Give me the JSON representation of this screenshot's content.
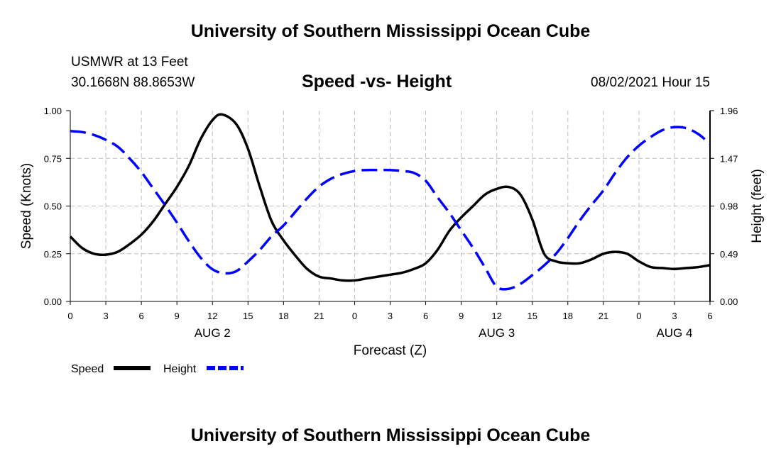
{
  "header": {
    "title": "University of Southern Mississippi Ocean Cube",
    "station": "USMWR at 13 Feet",
    "coordinates": "30.1668N  88.8653W",
    "timestamp": "08/02/2021 Hour 15"
  },
  "footer": {
    "title": "University of Southern Mississippi Ocean Cube"
  },
  "chart_data": {
    "type": "line",
    "title": "Speed -vs- Height",
    "xlabel": "Forecast (Z)",
    "ylabel": "Speed (Knots)",
    "y2label": "Height (feet)",
    "xlim": [
      0,
      54
    ],
    "ylim": [
      0,
      1.0
    ],
    "y2lim": [
      0,
      1.96
    ],
    "grid": true,
    "x_tick_values": [
      0,
      3,
      6,
      9,
      12,
      15,
      18,
      21,
      24,
      27,
      30,
      33,
      36,
      39,
      42,
      45,
      48,
      51,
      54
    ],
    "x_tick_labels": [
      "0",
      "3",
      "6",
      "9",
      "12",
      "15",
      "18",
      "21",
      "0",
      "3",
      "6",
      "9",
      "12",
      "15",
      "18",
      "21",
      "0",
      "3",
      "6"
    ],
    "y_tick_values": [
      0,
      0.25,
      0.5,
      0.75,
      1.0
    ],
    "y_tick_labels": [
      "0.00",
      "0.25",
      "0.50",
      "0.75",
      "1.00"
    ],
    "y2_tick_values": [
      0,
      0.49,
      0.98,
      1.47,
      1.96
    ],
    "y2_tick_labels": [
      "0.00",
      "0.49",
      "0.98",
      "1.47",
      "1.96"
    ],
    "date_labels": [
      {
        "label": "AUG 2",
        "x": 12
      },
      {
        "label": "AUG 3",
        "x": 36
      },
      {
        "label": "AUG 4",
        "x": 51
      }
    ],
    "legend": {
      "placement": "bottom-left"
    },
    "series": [
      {
        "name": "Speed",
        "axis": "left",
        "color": "#000000",
        "style": "solid",
        "x": [
          0,
          1,
          2,
          3,
          4,
          5,
          6,
          7,
          8,
          9,
          10,
          11,
          12,
          12.8,
          14,
          15,
          16,
          17,
          18,
          19,
          20,
          21,
          22,
          23,
          24,
          25,
          26,
          27,
          28,
          29,
          30,
          31,
          32,
          33,
          34,
          35,
          36,
          37,
          38,
          39,
          40,
          41,
          42,
          43,
          44,
          45,
          46,
          47,
          48,
          49,
          50,
          51,
          52,
          53,
          54
        ],
        "values": [
          0.34,
          0.28,
          0.25,
          0.245,
          0.26,
          0.3,
          0.35,
          0.42,
          0.51,
          0.6,
          0.71,
          0.85,
          0.95,
          0.98,
          0.93,
          0.8,
          0.6,
          0.42,
          0.32,
          0.24,
          0.17,
          0.13,
          0.12,
          0.11,
          0.11,
          0.12,
          0.13,
          0.14,
          0.15,
          0.17,
          0.2,
          0.27,
          0.37,
          0.44,
          0.5,
          0.56,
          0.59,
          0.6,
          0.56,
          0.43,
          0.25,
          0.21,
          0.2,
          0.2,
          0.22,
          0.25,
          0.26,
          0.25,
          0.21,
          0.18,
          0.175,
          0.17,
          0.175,
          0.18,
          0.19
        ]
      },
      {
        "name": "Height",
        "axis": "right",
        "color": "#0000ff",
        "style": "dashed",
        "x": [
          0,
          1,
          2,
          3,
          4,
          5,
          6,
          7,
          8,
          9,
          10,
          11,
          12,
          13,
          14,
          15,
          16,
          17,
          18,
          19,
          20,
          21,
          22,
          23,
          24,
          25,
          26,
          27,
          28,
          29,
          30,
          31,
          32,
          33,
          34,
          35,
          36,
          37,
          38,
          39,
          40,
          41,
          42,
          43,
          44,
          45,
          46,
          47,
          48,
          49,
          50,
          51,
          52,
          53,
          54
        ],
        "values": [
          1.75,
          1.74,
          1.71,
          1.66,
          1.59,
          1.47,
          1.33,
          1.16,
          0.99,
          0.81,
          0.62,
          0.45,
          0.33,
          0.29,
          0.31,
          0.41,
          0.53,
          0.67,
          0.78,
          0.92,
          1.06,
          1.18,
          1.26,
          1.31,
          1.34,
          1.35,
          1.35,
          1.35,
          1.34,
          1.32,
          1.24,
          1.07,
          0.91,
          0.73,
          0.55,
          0.35,
          0.15,
          0.13,
          0.18,
          0.27,
          0.37,
          0.49,
          0.65,
          0.83,
          0.99,
          1.14,
          1.32,
          1.48,
          1.6,
          1.69,
          1.76,
          1.79,
          1.78,
          1.72,
          1.62
        ]
      }
    ]
  }
}
